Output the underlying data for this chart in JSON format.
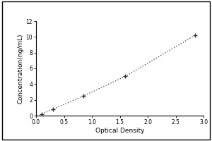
{
  "x_data": [
    0.1,
    0.3,
    0.85,
    1.6,
    2.85
  ],
  "y_data": [
    0.2,
    0.8,
    2.5,
    5.0,
    10.2
  ],
  "xlabel": "Optical Density",
  "ylabel": "Concentration(ng/mL)",
  "xlim": [
    0,
    3.0
  ],
  "ylim": [
    0,
    12
  ],
  "xticks": [
    0,
    0.5,
    1,
    1.5,
    2,
    2.5,
    3
  ],
  "yticks": [
    0,
    2,
    4,
    6,
    8,
    10,
    12
  ],
  "marker": "+",
  "marker_color": "#333333",
  "line_color": "#555555",
  "line_style": "dotted",
  "marker_size": 5,
  "linewidth": 1.0,
  "label_fontsize": 6.5,
  "tick_fontsize": 5.5,
  "background_color": "#ffffff",
  "outer_border_color": "#000000",
  "top_whitespace_ratio": 0.13
}
